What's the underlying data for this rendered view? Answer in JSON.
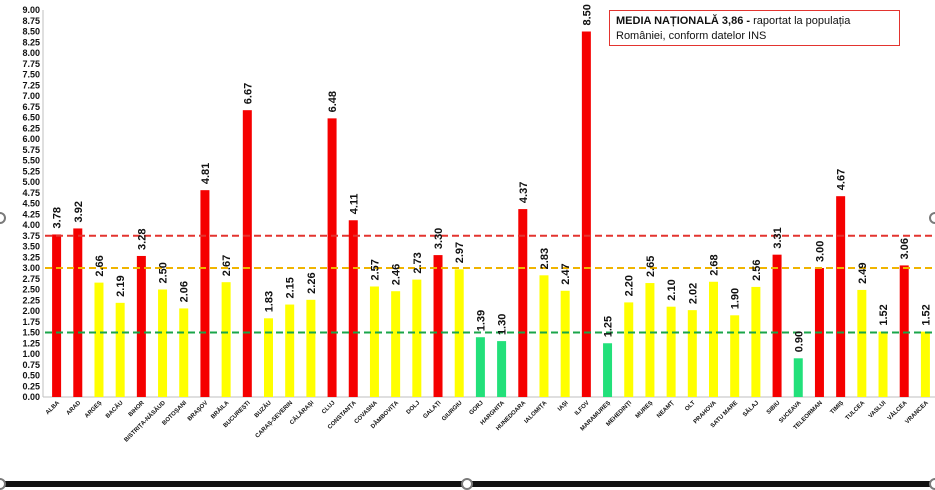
{
  "legend": {
    "bold": "MEDIA NAȚIONALĂ  3,86 -",
    "rest": " raportat la populația României, conform datelor INS"
  },
  "colors": {
    "red": "#f50000",
    "yellow": "#ffff00",
    "green": "#22e07a",
    "line_red": "#e3342f",
    "line_orange": "#f0b400",
    "line_green": "#1aa54a"
  },
  "chart_data": {
    "type": "bar",
    "ylim": [
      0,
      9
    ],
    "ystep": 0.25,
    "reference_lines": [
      {
        "value": 3.75,
        "color": "red"
      },
      {
        "value": 3.0,
        "color": "orange"
      },
      {
        "value": 1.5,
        "color": "green"
      }
    ],
    "categories": [
      "ALBA",
      "ARAD",
      "ARGEȘ",
      "BACĂU",
      "BIHOR",
      "BISTRIȚA-NĂSĂUD",
      "BOTOȘANI",
      "BRAȘOV",
      "BRĂILA",
      "BUCUREȘTI",
      "BUZĂU",
      "CARAȘ-SEVERIN",
      "CĂLĂRAȘI",
      "CLUJ",
      "CONSTANȚA",
      "COVASNA",
      "DÂMBOVIȚA",
      "DOLJ",
      "GALAȚI",
      "GIURGIU",
      "GORJ",
      "HARGHITA",
      "HUNEDOARA",
      "IALOMIȚA",
      "IAȘI",
      "ILFOV",
      "MARAMUREȘ",
      "MEHEDINȚI",
      "MUREȘ",
      "NEAMȚ",
      "OLT",
      "PRAHOVA",
      "SATU MARE",
      "SĂLAJ",
      "SIBIU",
      "SUCEAVA",
      "TELEORMAN",
      "TIMIȘ",
      "TULCEA",
      "VASLUI",
      "VÂLCEA",
      "VRANCEA"
    ],
    "values": [
      3.78,
      3.92,
      2.66,
      2.19,
      3.28,
      2.5,
      2.06,
      4.81,
      2.67,
      6.67,
      1.83,
      2.15,
      2.26,
      6.48,
      4.11,
      2.57,
      2.46,
      2.73,
      3.3,
      2.97,
      1.39,
      1.3,
      4.37,
      2.83,
      2.47,
      8.5,
      1.25,
      2.2,
      2.65,
      2.1,
      2.02,
      2.68,
      1.9,
      2.56,
      3.31,
      0.9,
      3.0,
      4.67,
      2.49,
      1.52,
      3.06,
      1.52
    ],
    "labels": [
      "3.78",
      "3.92",
      "2.66",
      "2.19",
      "3.28",
      "2.50",
      "2.06",
      "4.81",
      "2.67",
      "6.67",
      "1.83",
      "2.15",
      "2.26",
      "6.48",
      "4.11",
      "2.57",
      "2.46",
      "2.73",
      "3.30",
      "2.97",
      "1.39",
      "1.30",
      "4.37",
      "2.83",
      "2.47",
      "8.50",
      "1.25",
      "2.20",
      "2.65",
      "2.10",
      "2.02",
      "2.68",
      "1.90",
      "2.56",
      "3.31",
      "0.90",
      "3.00",
      "4.67",
      "2.49",
      "1.52",
      "3.06",
      "1.52"
    ],
    "bar_colors": [
      "red",
      "red",
      "yellow",
      "yellow",
      "red",
      "yellow",
      "yellow",
      "red",
      "yellow",
      "red",
      "yellow",
      "yellow",
      "yellow",
      "red",
      "red",
      "yellow",
      "yellow",
      "yellow",
      "red",
      "yellow",
      "green",
      "green",
      "red",
      "yellow",
      "yellow",
      "red",
      "green",
      "yellow",
      "yellow",
      "yellow",
      "yellow",
      "yellow",
      "yellow",
      "yellow",
      "red",
      "green",
      "red",
      "red",
      "yellow",
      "yellow",
      "red",
      "yellow"
    ]
  }
}
